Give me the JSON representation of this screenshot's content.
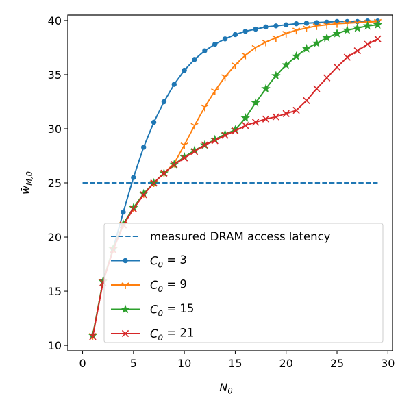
{
  "chart_data": {
    "type": "line",
    "xlabel": "N_0",
    "ylabel": "w̄_{M,0}",
    "xlim": [
      -1.45,
      30.45
    ],
    "ylim": [
      9.5,
      40.5
    ],
    "xticks": [
      0,
      5,
      10,
      15,
      20,
      25,
      30
    ],
    "yticks": [
      10,
      15,
      20,
      25,
      30,
      35,
      40
    ],
    "grid": false,
    "legend_location": "lower-right",
    "reference_line": {
      "name": "measured DRAM access latency",
      "style": "dashed",
      "color": "#1f77b4",
      "x": [
        0,
        29
      ],
      "y": [
        25,
        25
      ]
    },
    "series": [
      {
        "name": "C_0 = 3",
        "color": "#1f77b4",
        "marker": "point",
        "x": [
          1,
          2,
          3,
          4,
          5,
          6,
          7,
          8,
          9,
          10,
          11,
          12,
          13,
          14,
          15,
          16,
          17,
          18,
          19,
          20,
          21,
          22,
          23,
          24,
          25,
          26,
          27,
          28,
          29
        ],
        "y": [
          10.9,
          15.9,
          18.9,
          22.3,
          25.5,
          28.3,
          30.6,
          32.5,
          34.1,
          35.4,
          36.4,
          37.2,
          37.8,
          38.3,
          38.7,
          39.0,
          39.2,
          39.4,
          39.5,
          39.6,
          39.7,
          39.75,
          39.8,
          39.85,
          39.9,
          39.9,
          39.9,
          39.95,
          39.95
        ]
      },
      {
        "name": "C_0 = 9",
        "color": "#ff7f0e",
        "marker": "tri_down",
        "x": [
          1,
          2,
          3,
          4,
          5,
          6,
          7,
          8,
          9,
          10,
          11,
          12,
          13,
          14,
          15,
          16,
          17,
          18,
          19,
          20,
          21,
          22,
          23,
          24,
          25,
          26,
          27,
          28,
          29
        ],
        "y": [
          10.9,
          15.9,
          18.9,
          21.2,
          22.7,
          24.0,
          25.0,
          25.9,
          26.8,
          28.5,
          30.3,
          32.0,
          33.5,
          34.8,
          35.9,
          36.8,
          37.5,
          38.0,
          38.4,
          38.8,
          39.1,
          39.3,
          39.5,
          39.6,
          39.7,
          39.75,
          39.8,
          39.85,
          39.9
        ]
      },
      {
        "name": "C_0 = 15",
        "color": "#2ca02c",
        "marker": "star",
        "x": [
          1,
          2,
          3,
          4,
          5,
          6,
          7,
          8,
          9,
          10,
          11,
          12,
          13,
          14,
          15,
          16,
          17,
          18,
          19,
          20,
          21,
          22,
          23,
          24,
          25,
          26,
          27,
          28,
          29
        ],
        "y": [
          10.9,
          15.9,
          18.9,
          21.2,
          22.7,
          24.0,
          25.0,
          25.9,
          26.7,
          27.4,
          28.0,
          28.5,
          29.0,
          29.5,
          29.9,
          31.0,
          32.4,
          33.7,
          34.9,
          35.9,
          36.7,
          37.4,
          37.9,
          38.4,
          38.8,
          39.1,
          39.3,
          39.5,
          39.6
        ]
      },
      {
        "name": "C_0 = 21",
        "color": "#d62728",
        "marker": "x",
        "x": [
          1,
          2,
          3,
          4,
          5,
          6,
          7,
          8,
          9,
          10,
          11,
          12,
          13,
          14,
          15,
          16,
          17,
          18,
          19,
          20,
          21,
          22,
          23,
          24,
          25,
          26,
          27,
          28,
          29
        ],
        "y": [
          10.8,
          15.8,
          18.8,
          21.1,
          22.6,
          23.9,
          25.0,
          25.9,
          26.7,
          27.3,
          27.9,
          28.5,
          28.9,
          29.4,
          29.8,
          30.3,
          30.6,
          30.9,
          31.1,
          31.4,
          31.7,
          32.6,
          33.7,
          34.7,
          35.7,
          36.6,
          37.2,
          37.8,
          38.3
        ]
      }
    ]
  }
}
